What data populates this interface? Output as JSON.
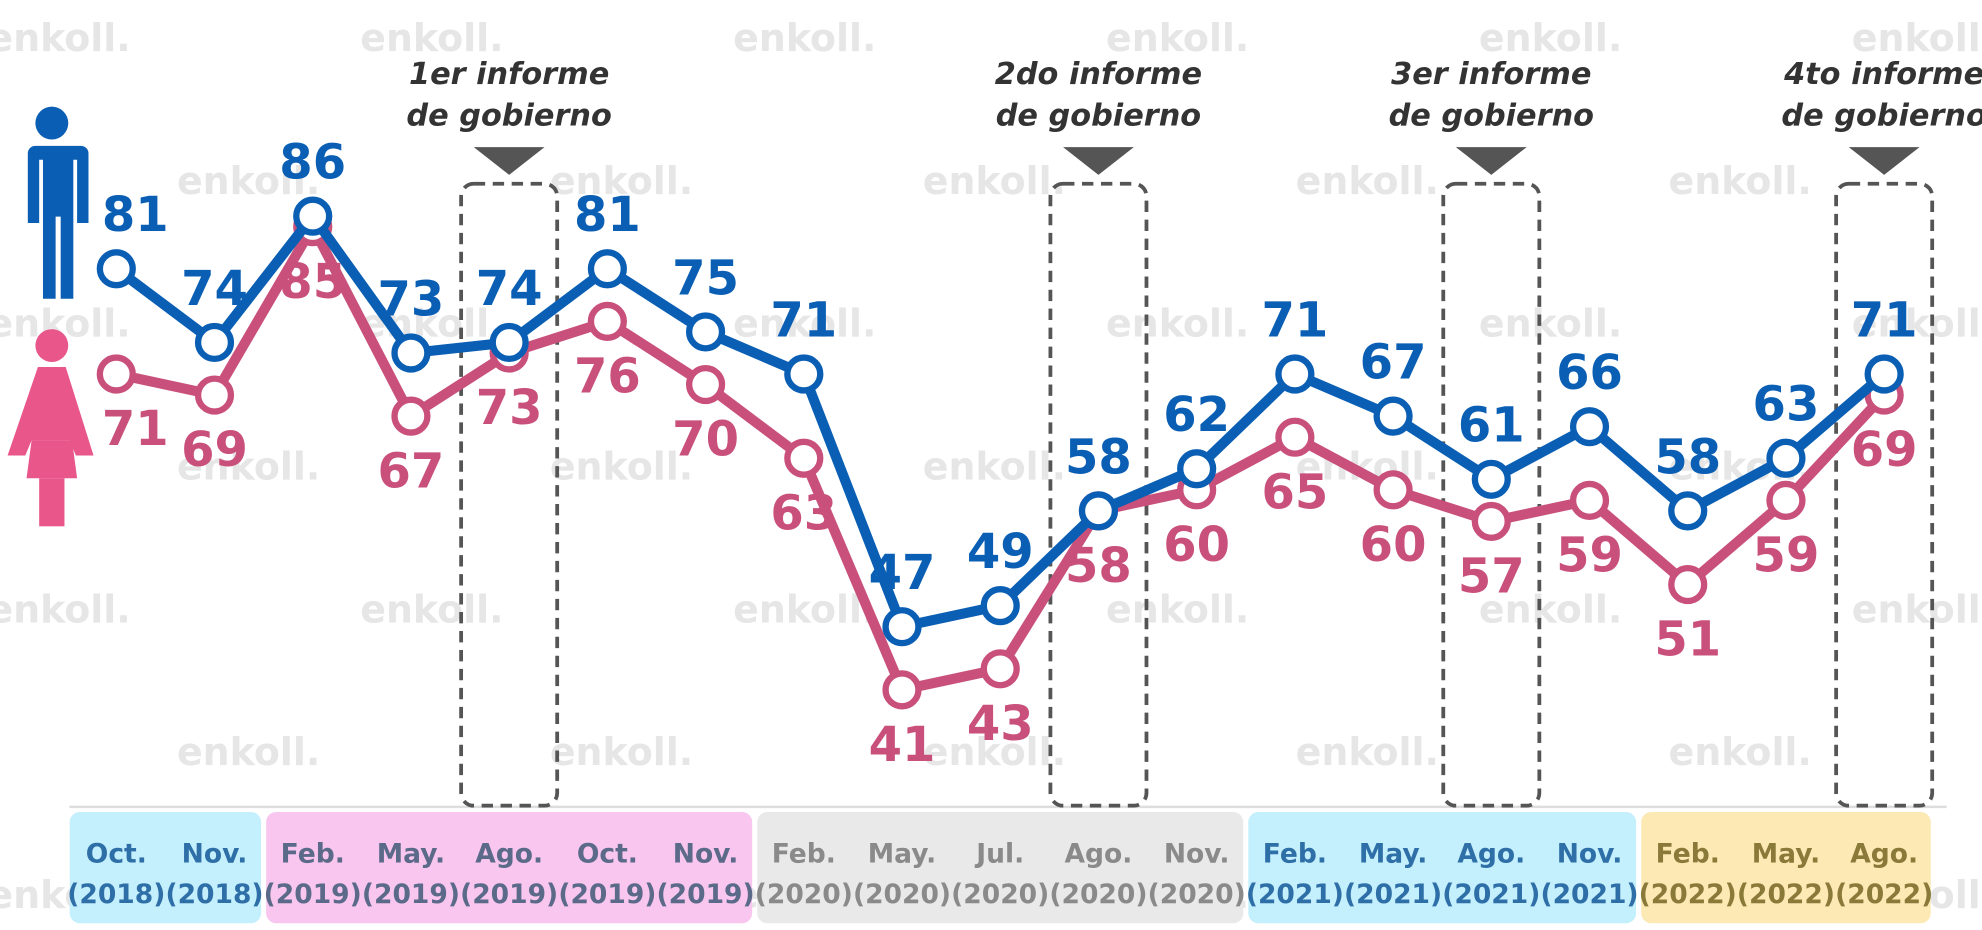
{
  "chart_data": {
    "type": "line",
    "watermark": "enkoll.",
    "categories": [
      "Oct. (2018)",
      "Nov. (2018)",
      "Feb. (2019)",
      "May. (2019)",
      "Ago. (2019)",
      "Oct. (2019)",
      "Nov. (2019)",
      "Feb. (2020)",
      "May. (2020)",
      "Jul. (2020)",
      "Ago. (2020)",
      "Nov. (2020)",
      "Feb. (2021)",
      "May. (2021)",
      "Ago. (2021)",
      "Nov. (2021)",
      "Feb. (2022)",
      "May. (2022)",
      "Ago. (2022)"
    ],
    "series": [
      {
        "name": "Hombres",
        "color": "#0a5fb4",
        "values": [
          81,
          74,
          86,
          73,
          74,
          81,
          75,
          71,
          47,
          49,
          58,
          62,
          71,
          67,
          61,
          66,
          58,
          63,
          71
        ]
      },
      {
        "name": "Mujeres",
        "color": "#c9507a",
        "values": [
          71,
          69,
          85,
          67,
          73,
          76,
          70,
          63,
          41,
          43,
          58,
          60,
          65,
          60,
          57,
          59,
          51,
          59,
          69
        ]
      }
    ],
    "ylim": [
      30,
      100
    ],
    "annotations": [
      [
        "1er informe",
        "de gobierno"
      ],
      [
        "2do informe",
        "de gobierno"
      ],
      [
        "3er informe",
        "de gobierno"
      ],
      [
        "4to informe",
        "de gobierno"
      ]
    ]
  }
}
